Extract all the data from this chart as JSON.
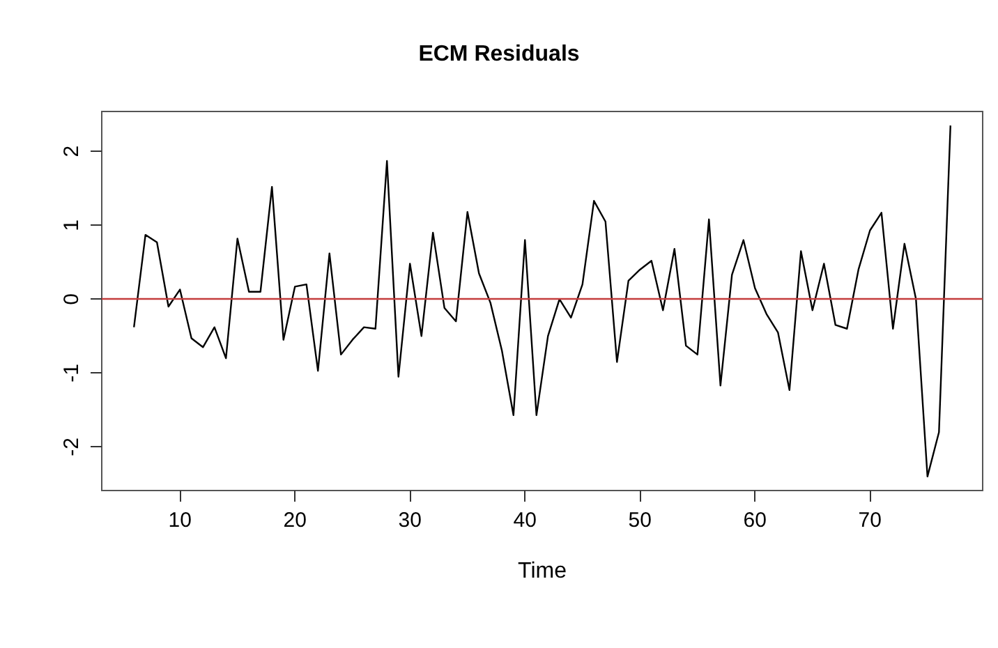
{
  "chart_data": {
    "type": "line",
    "title": "ECM Residuals",
    "xlabel": "Time",
    "x": [
      6,
      7,
      8,
      9,
      10,
      11,
      12,
      13,
      14,
      15,
      16,
      17,
      18,
      19,
      20,
      21,
      22,
      23,
      24,
      25,
      26,
      27,
      28,
      29,
      30,
      31,
      32,
      33,
      34,
      35,
      36,
      37,
      38,
      39,
      40,
      41,
      42,
      43,
      44,
      45,
      46,
      47,
      48,
      49,
      50,
      51,
      52,
      53,
      54,
      55,
      56,
      57,
      58,
      59,
      60,
      61,
      62,
      63,
      64,
      65,
      66,
      67,
      68,
      69,
      70,
      71,
      72,
      73,
      74,
      75,
      76,
      77
    ],
    "series": [
      {
        "color": "#000000",
        "values": [
          -0.38,
          0.87,
          0.77,
          -0.1,
          0.13,
          -0.53,
          -0.65,
          -0.38,
          -0.8,
          0.82,
          0.1,
          0.1,
          1.52,
          -0.55,
          0.17,
          0.2,
          -0.97,
          0.62,
          -0.75,
          -0.55,
          -0.38,
          -0.4,
          1.87,
          -1.05,
          0.48,
          -0.5,
          0.9,
          -0.12,
          -0.3,
          1.18,
          0.35,
          -0.05,
          -0.7,
          -1.57,
          0.8,
          -1.57,
          -0.5,
          0.0,
          -0.25,
          0.2,
          1.33,
          1.05,
          -0.85,
          0.25,
          0.4,
          0.52,
          -0.15,
          0.68,
          -0.63,
          -0.75,
          1.08,
          -1.17,
          0.33,
          0.8,
          0.15,
          -0.2,
          -0.45,
          -1.23,
          0.65,
          -0.15,
          0.48,
          -0.35,
          -0.4,
          0.4,
          0.93,
          1.17,
          -0.4,
          0.75,
          0.0,
          -2.4,
          -1.8,
          2.35
        ]
      }
    ],
    "xlim": [
      3.2,
      79.8
    ],
    "ylim": [
      -2.59,
      2.54
    ],
    "xticks": [
      10,
      20,
      30,
      40,
      50,
      60,
      70
    ],
    "yticks": [
      -2,
      -1,
      0,
      1,
      2
    ],
    "ref_lines": [
      {
        "axis": "y",
        "value": 0,
        "color": "#c43c3c"
      }
    ],
    "grid": false,
    "marker": "none",
    "line_style": "solid"
  }
}
